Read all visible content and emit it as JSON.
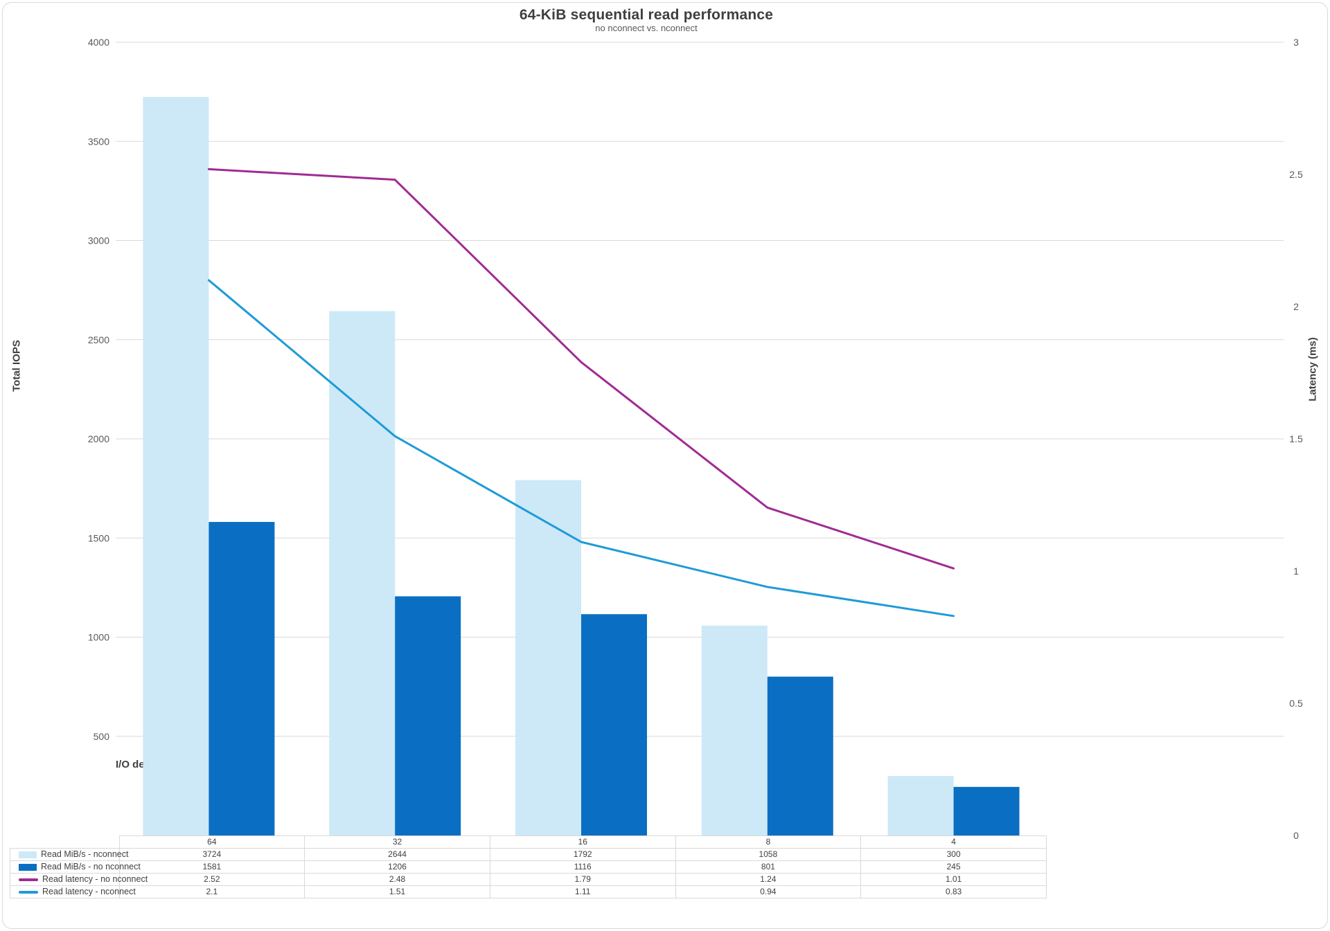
{
  "title": "64-KiB sequential read performance",
  "subtitle": "no nconnect vs. nconnect",
  "chart_data": {
    "type": "combo-bar-line",
    "categories": [
      "64",
      "32",
      "16",
      "8",
      "4"
    ],
    "x_axis_title": "I/O depth",
    "primary_axis": {
      "title": "Total IOPS",
      "min": 0,
      "max": 4000,
      "tick_labels": [
        "4000",
        "3500",
        "3000",
        "2500",
        "2000",
        "1500",
        "1000",
        "500"
      ]
    },
    "secondary_axis": {
      "title": "Latency (ms)",
      "min": 0,
      "max": 3,
      "tick_labels": [
        "3",
        "2.5",
        "2",
        "1.5",
        "1",
        "0.5",
        "0"
      ]
    },
    "grid": "horizontal",
    "legend_position": "table-left",
    "series": [
      {
        "name": "Read MiB/s - nconnect",
        "kind": "bar",
        "axis": "primary",
        "color": "#cde9f8",
        "values": [
          3724,
          2644,
          1792,
          1058,
          300
        ],
        "display": [
          "3724",
          "2644",
          "1792",
          "1058",
          "300"
        ]
      },
      {
        "name": "Read MiB/s - no nconnect",
        "kind": "bar",
        "axis": "primary",
        "color": "#0a6fc2",
        "values": [
          1581,
          1206,
          1116,
          801,
          245
        ],
        "display": [
          "1581",
          "1206",
          "1116",
          "801",
          "245"
        ]
      },
      {
        "name": "Read latency - no nconnect",
        "kind": "line",
        "axis": "secondary",
        "color": "#a02b93",
        "values": [
          2.52,
          2.48,
          1.79,
          1.24,
          1.01
        ],
        "display": [
          "2.52",
          "2.48",
          "1.79",
          "1.24",
          "1.01"
        ]
      },
      {
        "name": "Read latency - nconnect",
        "kind": "line",
        "axis": "secondary",
        "color": "#1e9bd7",
        "values": [
          2.1,
          1.51,
          1.11,
          0.94,
          0.83
        ],
        "display": [
          "2.1",
          "1.51",
          "1.11",
          "0.94",
          "0.83"
        ]
      }
    ],
    "colors": {
      "gridline": "#d9d9d9",
      "tick_text": "#595959",
      "table_border": "#d9d9d9",
      "text": "#404040"
    }
  }
}
